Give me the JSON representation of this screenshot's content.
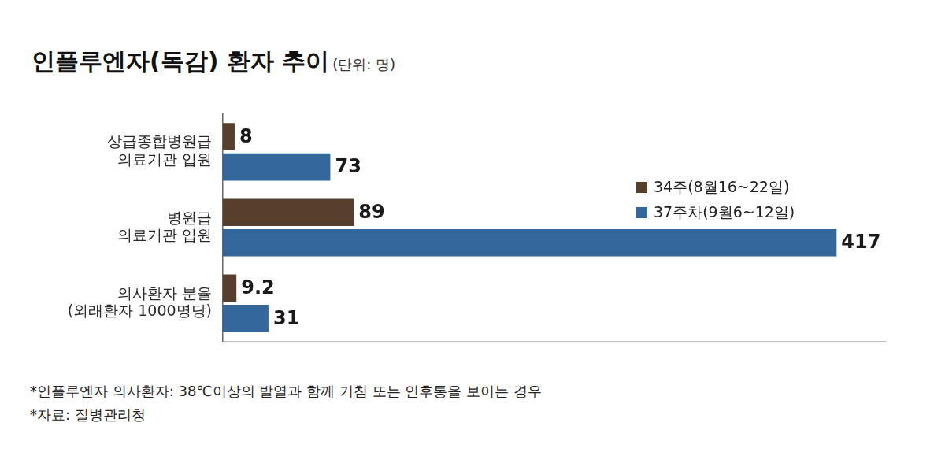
{
  "chart_data": {
    "type": "bar",
    "orientation": "horizontal",
    "title": "인플루엔자(독감) 환자 추이",
    "subtitle": "(단위: 명)",
    "categories": [
      "상급종합병원급\n의료기관 입원",
      "병원급\n의료기관 입원",
      "의사환자 분율\n(외래환자 1000명당)"
    ],
    "series": [
      {
        "name": "34주(8월16~22일)",
        "color": "#573f2e",
        "values": [
          8,
          89,
          9.2
        ]
      },
      {
        "name": "37주차(9월6~12일)",
        "color": "#34679c",
        "values": [
          73,
          417,
          31
        ]
      }
    ],
    "xlim": [
      0,
      450
    ],
    "tick_labels": "y",
    "grid": false,
    "legend": "right",
    "data_labels": true,
    "annotations": [
      "*인플루엔자 의사환자: 38℃이상의 발열과 함께 기침 또는 인후통을 보이는 경우",
      "*자료: 질병관리청"
    ]
  }
}
